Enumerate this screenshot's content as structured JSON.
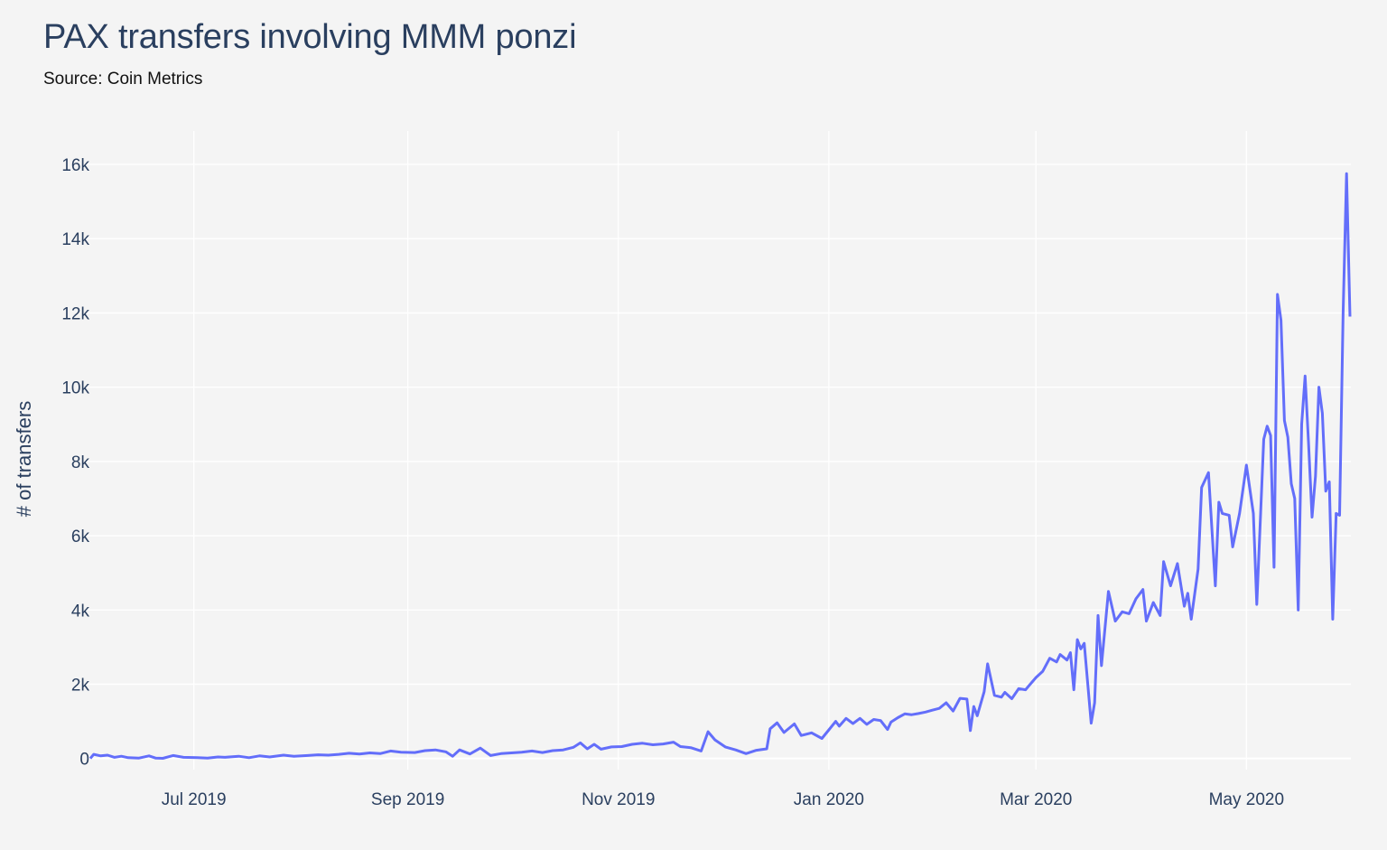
{
  "title": "PAX transfers involving MMM ponzi",
  "subtitle": "Source: Coin Metrics",
  "chart_data": {
    "type": "line",
    "title": "PAX transfers involving MMM ponzi",
    "subtitle": "Source: Coin Metrics",
    "xlabel": "",
    "ylabel": "# of transfers",
    "x_start_date": "2019-06-01",
    "x_end_date": "2020-05-31",
    "ylim": [
      -300,
      16900
    ],
    "y_ticks": [
      0,
      2000,
      4000,
      6000,
      8000,
      10000,
      12000,
      14000,
      16000
    ],
    "y_tick_labels": [
      "0",
      "2k",
      "4k",
      "6k",
      "8k",
      "10k",
      "12k",
      "14k",
      "16k"
    ],
    "x_tick_labels": [
      "Jul 2019",
      "Sep 2019",
      "Nov 2019",
      "Jan 2020",
      "Mar 2020",
      "May 2020"
    ],
    "grid": true,
    "line_color": "#636efa",
    "series": [
      {
        "name": "",
        "points": [
          [
            "2019-06-01",
            0
          ],
          [
            "2019-06-02",
            110
          ],
          [
            "2019-06-04",
            70
          ],
          [
            "2019-06-06",
            90
          ],
          [
            "2019-06-08",
            30
          ],
          [
            "2019-06-10",
            60
          ],
          [
            "2019-06-12",
            20
          ],
          [
            "2019-06-15",
            10
          ],
          [
            "2019-06-18",
            70
          ],
          [
            "2019-06-20",
            10
          ],
          [
            "2019-06-22",
            5
          ],
          [
            "2019-06-25",
            80
          ],
          [
            "2019-06-28",
            30
          ],
          [
            "2019-07-02",
            20
          ],
          [
            "2019-07-05",
            10
          ],
          [
            "2019-07-08",
            40
          ],
          [
            "2019-07-10",
            30
          ],
          [
            "2019-07-14",
            60
          ],
          [
            "2019-07-17",
            20
          ],
          [
            "2019-07-20",
            70
          ],
          [
            "2019-07-23",
            40
          ],
          [
            "2019-07-27",
            90
          ],
          [
            "2019-07-30",
            60
          ],
          [
            "2019-08-03",
            80
          ],
          [
            "2019-08-06",
            100
          ],
          [
            "2019-08-09",
            90
          ],
          [
            "2019-08-12",
            110
          ],
          [
            "2019-08-15",
            140
          ],
          [
            "2019-08-18",
            120
          ],
          [
            "2019-08-21",
            150
          ],
          [
            "2019-08-24",
            130
          ],
          [
            "2019-08-27",
            200
          ],
          [
            "2019-08-30",
            170
          ],
          [
            "2019-09-03",
            160
          ],
          [
            "2019-09-06",
            210
          ],
          [
            "2019-09-09",
            230
          ],
          [
            "2019-09-12",
            180
          ],
          [
            "2019-09-14",
            60
          ],
          [
            "2019-09-16",
            230
          ],
          [
            "2019-09-19",
            120
          ],
          [
            "2019-09-22",
            280
          ],
          [
            "2019-09-25",
            80
          ],
          [
            "2019-09-28",
            130
          ],
          [
            "2019-10-01",
            150
          ],
          [
            "2019-10-04",
            170
          ],
          [
            "2019-10-07",
            200
          ],
          [
            "2019-10-10",
            160
          ],
          [
            "2019-10-13",
            210
          ],
          [
            "2019-10-16",
            230
          ],
          [
            "2019-10-19",
            300
          ],
          [
            "2019-10-21",
            420
          ],
          [
            "2019-10-23",
            260
          ],
          [
            "2019-10-25",
            380
          ],
          [
            "2019-10-27",
            250
          ],
          [
            "2019-10-30",
            310
          ],
          [
            "2019-11-02",
            320
          ],
          [
            "2019-11-05",
            380
          ],
          [
            "2019-11-08",
            410
          ],
          [
            "2019-11-11",
            370
          ],
          [
            "2019-11-14",
            390
          ],
          [
            "2019-11-17",
            440
          ],
          [
            "2019-11-19",
            320
          ],
          [
            "2019-11-22",
            290
          ],
          [
            "2019-11-25",
            200
          ],
          [
            "2019-11-27",
            720
          ],
          [
            "2019-11-29",
            500
          ],
          [
            "2019-12-02",
            310
          ],
          [
            "2019-12-05",
            230
          ],
          [
            "2019-12-08",
            130
          ],
          [
            "2019-12-11",
            220
          ],
          [
            "2019-12-14",
            260
          ],
          [
            "2019-12-15",
            800
          ],
          [
            "2019-12-17",
            960
          ],
          [
            "2019-12-19",
            700
          ],
          [
            "2019-12-22",
            930
          ],
          [
            "2019-12-24",
            620
          ],
          [
            "2019-12-27",
            690
          ],
          [
            "2019-12-30",
            540
          ],
          [
            "2020-01-01",
            770
          ],
          [
            "2020-01-03",
            1000
          ],
          [
            "2020-01-04",
            870
          ],
          [
            "2020-01-06",
            1080
          ],
          [
            "2020-01-08",
            940
          ],
          [
            "2020-01-10",
            1080
          ],
          [
            "2020-01-12",
            920
          ],
          [
            "2020-01-14",
            1050
          ],
          [
            "2020-01-16",
            1020
          ],
          [
            "2020-01-18",
            780
          ],
          [
            "2020-01-19",
            980
          ],
          [
            "2020-01-21",
            1100
          ],
          [
            "2020-01-23",
            1200
          ],
          [
            "2020-01-25",
            1180
          ],
          [
            "2020-01-27",
            1210
          ],
          [
            "2020-01-29",
            1250
          ],
          [
            "2020-01-31",
            1300
          ],
          [
            "2020-02-02",
            1350
          ],
          [
            "2020-02-04",
            1500
          ],
          [
            "2020-02-06",
            1280
          ],
          [
            "2020-02-08",
            1620
          ],
          [
            "2020-02-10",
            1600
          ],
          [
            "2020-02-11",
            750
          ],
          [
            "2020-02-12",
            1400
          ],
          [
            "2020-02-13",
            1150
          ],
          [
            "2020-02-15",
            1800
          ],
          [
            "2020-02-16",
            2550
          ],
          [
            "2020-02-18",
            1700
          ],
          [
            "2020-02-20",
            1650
          ],
          [
            "2020-02-21",
            1780
          ],
          [
            "2020-02-23",
            1610
          ],
          [
            "2020-02-25",
            1880
          ],
          [
            "2020-02-27",
            1850
          ],
          [
            "2020-03-01",
            2180
          ],
          [
            "2020-03-03",
            2350
          ],
          [
            "2020-03-05",
            2700
          ],
          [
            "2020-03-07",
            2600
          ],
          [
            "2020-03-08",
            2800
          ],
          [
            "2020-03-10",
            2650
          ],
          [
            "2020-03-11",
            2850
          ],
          [
            "2020-03-12",
            1850
          ],
          [
            "2020-03-13",
            3200
          ],
          [
            "2020-03-14",
            2950
          ],
          [
            "2020-03-15",
            3100
          ],
          [
            "2020-03-17",
            950
          ],
          [
            "2020-03-18",
            1500
          ],
          [
            "2020-03-19",
            3850
          ],
          [
            "2020-03-20",
            2500
          ],
          [
            "2020-03-22",
            4500
          ],
          [
            "2020-03-24",
            3700
          ],
          [
            "2020-03-26",
            3950
          ],
          [
            "2020-03-28",
            3900
          ],
          [
            "2020-03-30",
            4300
          ],
          [
            "2020-04-01",
            4550
          ],
          [
            "2020-04-02",
            3700
          ],
          [
            "2020-04-04",
            4200
          ],
          [
            "2020-04-06",
            3850
          ],
          [
            "2020-04-07",
            5300
          ],
          [
            "2020-04-09",
            4650
          ],
          [
            "2020-04-11",
            5250
          ],
          [
            "2020-04-13",
            4100
          ],
          [
            "2020-04-14",
            4450
          ],
          [
            "2020-04-15",
            3750
          ],
          [
            "2020-04-17",
            5100
          ],
          [
            "2020-04-18",
            7300
          ],
          [
            "2020-04-20",
            7700
          ],
          [
            "2020-04-22",
            4650
          ],
          [
            "2020-04-23",
            6900
          ],
          [
            "2020-04-24",
            6600
          ],
          [
            "2020-04-26",
            6550
          ],
          [
            "2020-04-27",
            5700
          ],
          [
            "2020-04-29",
            6600
          ],
          [
            "2020-05-01",
            7900
          ],
          [
            "2020-05-03",
            6600
          ],
          [
            "2020-05-04",
            4150
          ],
          [
            "2020-05-06",
            8600
          ],
          [
            "2020-05-07",
            8950
          ],
          [
            "2020-05-08",
            8700
          ],
          [
            "2020-05-09",
            5150
          ],
          [
            "2020-05-10",
            12500
          ],
          [
            "2020-05-11",
            11800
          ],
          [
            "2020-05-12",
            9100
          ],
          [
            "2020-05-13",
            8650
          ],
          [
            "2020-05-14",
            7400
          ],
          [
            "2020-05-15",
            7000
          ],
          [
            "2020-05-16",
            4000
          ],
          [
            "2020-05-17",
            9000
          ],
          [
            "2020-05-18",
            10300
          ],
          [
            "2020-05-19",
            8500
          ],
          [
            "2020-05-20",
            6500
          ],
          [
            "2020-05-21",
            7600
          ],
          [
            "2020-05-22",
            10000
          ],
          [
            "2020-05-23",
            9300
          ],
          [
            "2020-05-24",
            7200
          ],
          [
            "2020-05-25",
            7450
          ],
          [
            "2020-05-26",
            3750
          ],
          [
            "2020-05-27",
            6600
          ],
          [
            "2020-05-28",
            6550
          ],
          [
            "2020-05-29",
            12000
          ],
          [
            "2020-05-30",
            15750
          ],
          [
            "2020-05-31",
            11900
          ]
        ]
      }
    ]
  }
}
